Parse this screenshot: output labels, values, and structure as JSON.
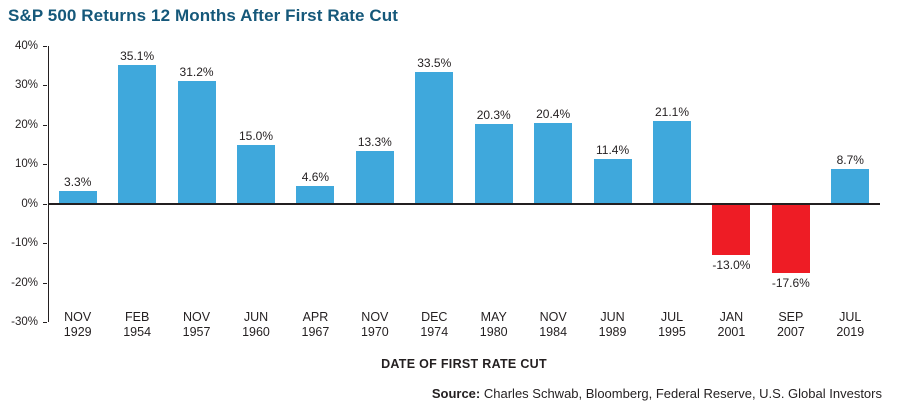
{
  "chart_data": {
    "type": "bar",
    "title": "S&P 500 Returns 12 Months After First Rate Cut",
    "xlabel": "DATE OF FIRST RATE CUT",
    "ylabel": "",
    "ylim": [
      -30,
      40
    ],
    "ytick_labels": [
      "40%",
      "30%",
      "20%",
      "10%",
      "0%",
      "-10%",
      "-20%",
      "-30%"
    ],
    "grid": false,
    "legend": "none",
    "categories": [
      {
        "month": "NOV",
        "year": "1929"
      },
      {
        "month": "FEB",
        "year": "1954"
      },
      {
        "month": "NOV",
        "year": "1957"
      },
      {
        "month": "JUN",
        "year": "1960"
      },
      {
        "month": "APR",
        "year": "1967"
      },
      {
        "month": "NOV",
        "year": "1970"
      },
      {
        "month": "DEC",
        "year": "1974"
      },
      {
        "month": "MAY",
        "year": "1980"
      },
      {
        "month": "NOV",
        "year": "1984"
      },
      {
        "month": "JUN",
        "year": "1989"
      },
      {
        "month": "JUL",
        "year": "1995"
      },
      {
        "month": "JAN",
        "year": "2001"
      },
      {
        "month": "SEP",
        "year": "2007"
      },
      {
        "month": "JUL",
        "year": "2019"
      }
    ],
    "values": [
      3.3,
      35.1,
      31.2,
      15.0,
      4.6,
      13.3,
      33.5,
      20.3,
      20.4,
      11.4,
      21.1,
      -13.0,
      -17.6,
      8.7
    ],
    "value_labels": [
      "3.3%",
      "35.1%",
      "31.2%",
      "15.0%",
      "4.6%",
      "13.3%",
      "33.5%",
      "20.3%",
      "20.4%",
      "11.4%",
      "21.1%",
      "-13.0%",
      "-17.6%",
      "8.7%"
    ],
    "colors": {
      "positive": "#3fa8dc",
      "negative": "#ee1c25",
      "axis": "#231f20",
      "title": "#15587a"
    }
  },
  "footer": {
    "source_label": "Source:",
    "source_text": "Charles Schwab, Bloomberg, Federal Reserve, U.S. Global Investors"
  }
}
